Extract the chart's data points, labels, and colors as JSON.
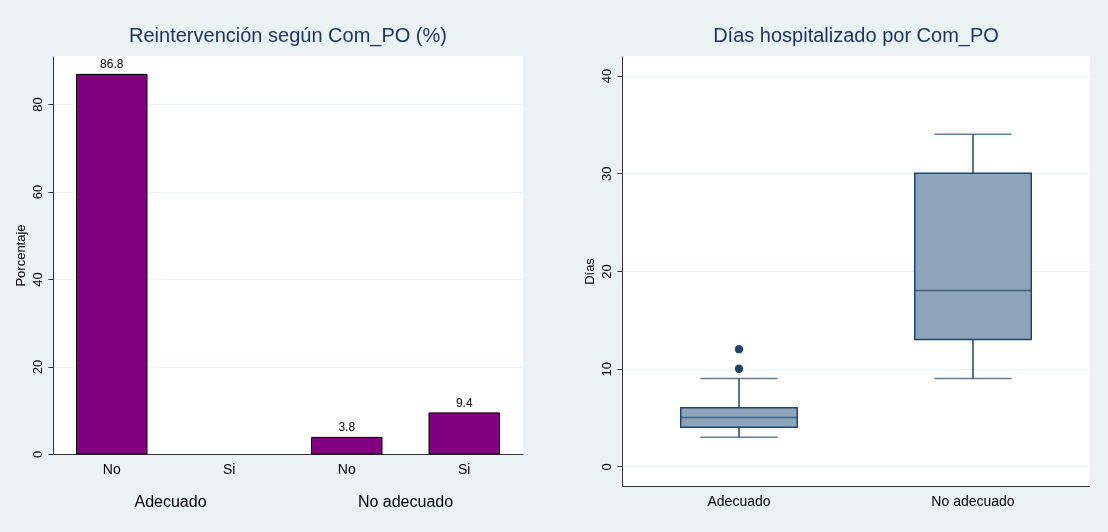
{
  "chart_data": [
    {
      "type": "bar",
      "title": "Reintervención según Com_PO (%)",
      "ylabel": "Porcentaje",
      "categories": [
        "No",
        "Si",
        "No",
        "Si"
      ],
      "values": [
        86.8,
        null,
        3.8,
        9.4
      ],
      "color": "#800080",
      "value_labels": [
        "86.8",
        null,
        "3.8",
        "9.4"
      ],
      "annotations": [
        "Adecuado",
        "No adecuado"
      ],
      "ylim": [
        0,
        91
      ],
      "yticks": [
        0,
        20,
        40,
        60,
        80
      ],
      "grid": "y"
    },
    {
      "type": "box",
      "title": "Días hospitalizado por Com_PO",
      "ylabel": "Días",
      "categories": [
        "Adecuado",
        "No adecuado"
      ],
      "color": "#8ea4b8",
      "boxes": [
        {
          "low": 3,
          "q1": 4,
          "median": 5,
          "q3": 6,
          "high": 9,
          "outliers": [
            10,
            12
          ]
        },
        {
          "low": 9,
          "q1": 13,
          "median": 18,
          "q3": 30,
          "high": 34
        }
      ],
      "ylim": [
        -2,
        42
      ],
      "yticks": [
        0,
        10,
        20,
        30,
        40
      ],
      "grid": "y"
    }
  ]
}
